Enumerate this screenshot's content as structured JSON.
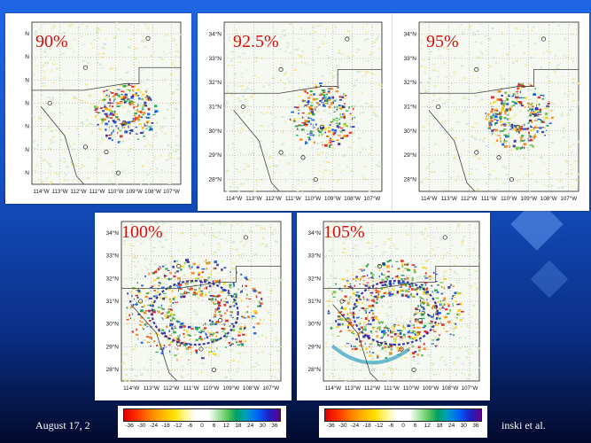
{
  "slide": {
    "footer_left": "August 17, 2",
    "footer_right": "inski et al."
  },
  "panels": [
    {
      "label": "90%",
      "lat_ticks": [
        "N",
        "N",
        "N",
        "N",
        "N",
        "N",
        "N"
      ],
      "lon_ticks": [
        "114°W",
        "113°W",
        "112°W",
        "111°W",
        "110°W",
        "109°W",
        "108°W",
        "107°W"
      ],
      "activity": 0.25
    },
    {
      "label": "92.5%",
      "lat_ticks": [
        "34°N",
        "33°N",
        "32°N",
        "31°N",
        "30°N",
        "29°N",
        "28°N"
      ],
      "lon_ticks": [
        "114°W",
        "113°W",
        "112°W",
        "111°W",
        "110°W",
        "109°W",
        "108°W",
        "107°W"
      ],
      "activity": 0.25
    },
    {
      "label": "95%",
      "lat_ticks": [
        "34°N",
        "33°N",
        "32°N",
        "31°N",
        "30°N",
        "29°N",
        "28°N"
      ],
      "lon_ticks": [
        "114°W",
        "113°W",
        "112°W",
        "111°W",
        "110°W",
        "109°W",
        "108°W",
        "107°W"
      ],
      "activity": 0.35
    },
    {
      "label": "100%",
      "lat_ticks": [
        "34°N",
        "33°N",
        "32°N",
        "31°N",
        "30°N",
        "29°N",
        "28°N"
      ],
      "lon_ticks": [
        "114°W",
        "113°W",
        "112°W",
        "111°W",
        "110°W",
        "109°W",
        "108°W",
        "107°W"
      ],
      "activity": 0.8
    },
    {
      "label": "105%",
      "lat_ticks": [
        "34°N",
        "33°N",
        "32°N",
        "31°N",
        "30°N",
        "29°N",
        "28°N"
      ],
      "lon_ticks": [
        "114°W",
        "113°W",
        "112°W",
        "111°W",
        "110°W",
        "109°W",
        "108°W",
        "107°W"
      ],
      "activity": 1.0
    }
  ],
  "colorbars": [
    {
      "ticks": [
        "-36",
        "-30",
        "-24",
        "-18",
        "-12",
        "-6",
        "0",
        "6",
        "12",
        "18",
        "24",
        "30",
        "36"
      ]
    },
    {
      "ticks": [
        "-36",
        "-30",
        "-24",
        "-18",
        "-12",
        "-6",
        "0",
        "6",
        "12",
        "18",
        "24",
        "30",
        "36"
      ]
    }
  ]
}
